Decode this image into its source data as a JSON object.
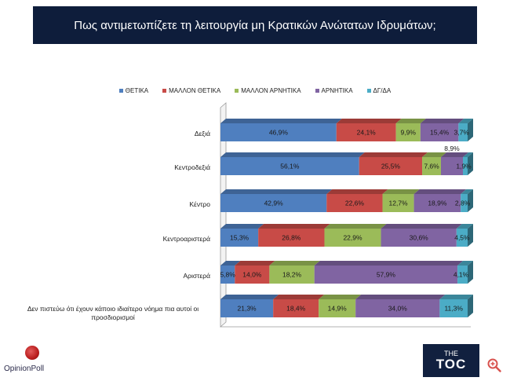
{
  "title": "Πως αντιμετωπίζετε τη λειτουργία μη Κρατικών Ανώτατων Ιδρυμάτων;",
  "chart_data": {
    "type": "bar",
    "orientation": "horizontal",
    "stacked": true,
    "percent_stacked": true,
    "categories": [
      "Δεξιά",
      "Κεντροδεξιά",
      "Κέντρο",
      "Κεντροαριστερά",
      "Αριστερά",
      "Δεν πιστεύω ότι έχουν κάποιο ιδιαίτερο νόημα πια αυτοί οι προσδιορισμοί"
    ],
    "series": [
      {
        "name": "ΘΕΤΙΚΑ",
        "color": "#4f7fbf",
        "values": [
          46.9,
          56.1,
          42.9,
          15.3,
          5.8,
          21.3
        ],
        "labels": [
          "46,9%",
          "56,1%",
          "42,9%",
          "15,3%",
          "5,8%",
          "21,3%"
        ]
      },
      {
        "name": "ΜΑΛΛΟΝ ΘΕΤΙΚΑ",
        "color": "#c84b47",
        "values": [
          24.1,
          25.5,
          22.6,
          26.8,
          14.0,
          18.4
        ],
        "labels": [
          "24,1%",
          "25,5%",
          "22,6%",
          "26,8%",
          "14,0%",
          "18,4%"
        ]
      },
      {
        "name": "ΜΑΛΛΟΝ ΑΡΝΗΤΙΚΑ",
        "color": "#9bbb59",
        "values": [
          9.9,
          7.6,
          12.7,
          22.9,
          18.2,
          14.9
        ],
        "labels": [
          "9,9%",
          "7,6%",
          "12,7%",
          "22,9%",
          "18,2%",
          "14,9%"
        ]
      },
      {
        "name": "ΑΡΝΗΤΙΚΑ",
        "color": "#8064a2",
        "values": [
          15.4,
          8.9,
          18.9,
          30.6,
          57.9,
          34.0
        ],
        "labels": [
          "15,4%",
          "8,9%",
          "18,9%",
          "30,6%",
          "57,9%",
          "34,0%"
        ]
      },
      {
        "name": "ΔΓ/ΔΑ",
        "color": "#4bacc6",
        "values": [
          3.7,
          1.9,
          2.8,
          4.5,
          4.1,
          11.3
        ],
        "labels": [
          "3,7%",
          "1,9%",
          "2,8%",
          "4,5%",
          "4,1%",
          "11,3%"
        ]
      }
    ],
    "xlim": [
      0,
      100
    ],
    "legend_position": "top",
    "grid": false
  },
  "logos": {
    "left": "OpinionPoll",
    "right_small": "THE",
    "right_big": "TOC"
  },
  "icons": {
    "zoom": "zoom-in-icon",
    "poll_logo": "opinion-poll-dot-icon"
  }
}
